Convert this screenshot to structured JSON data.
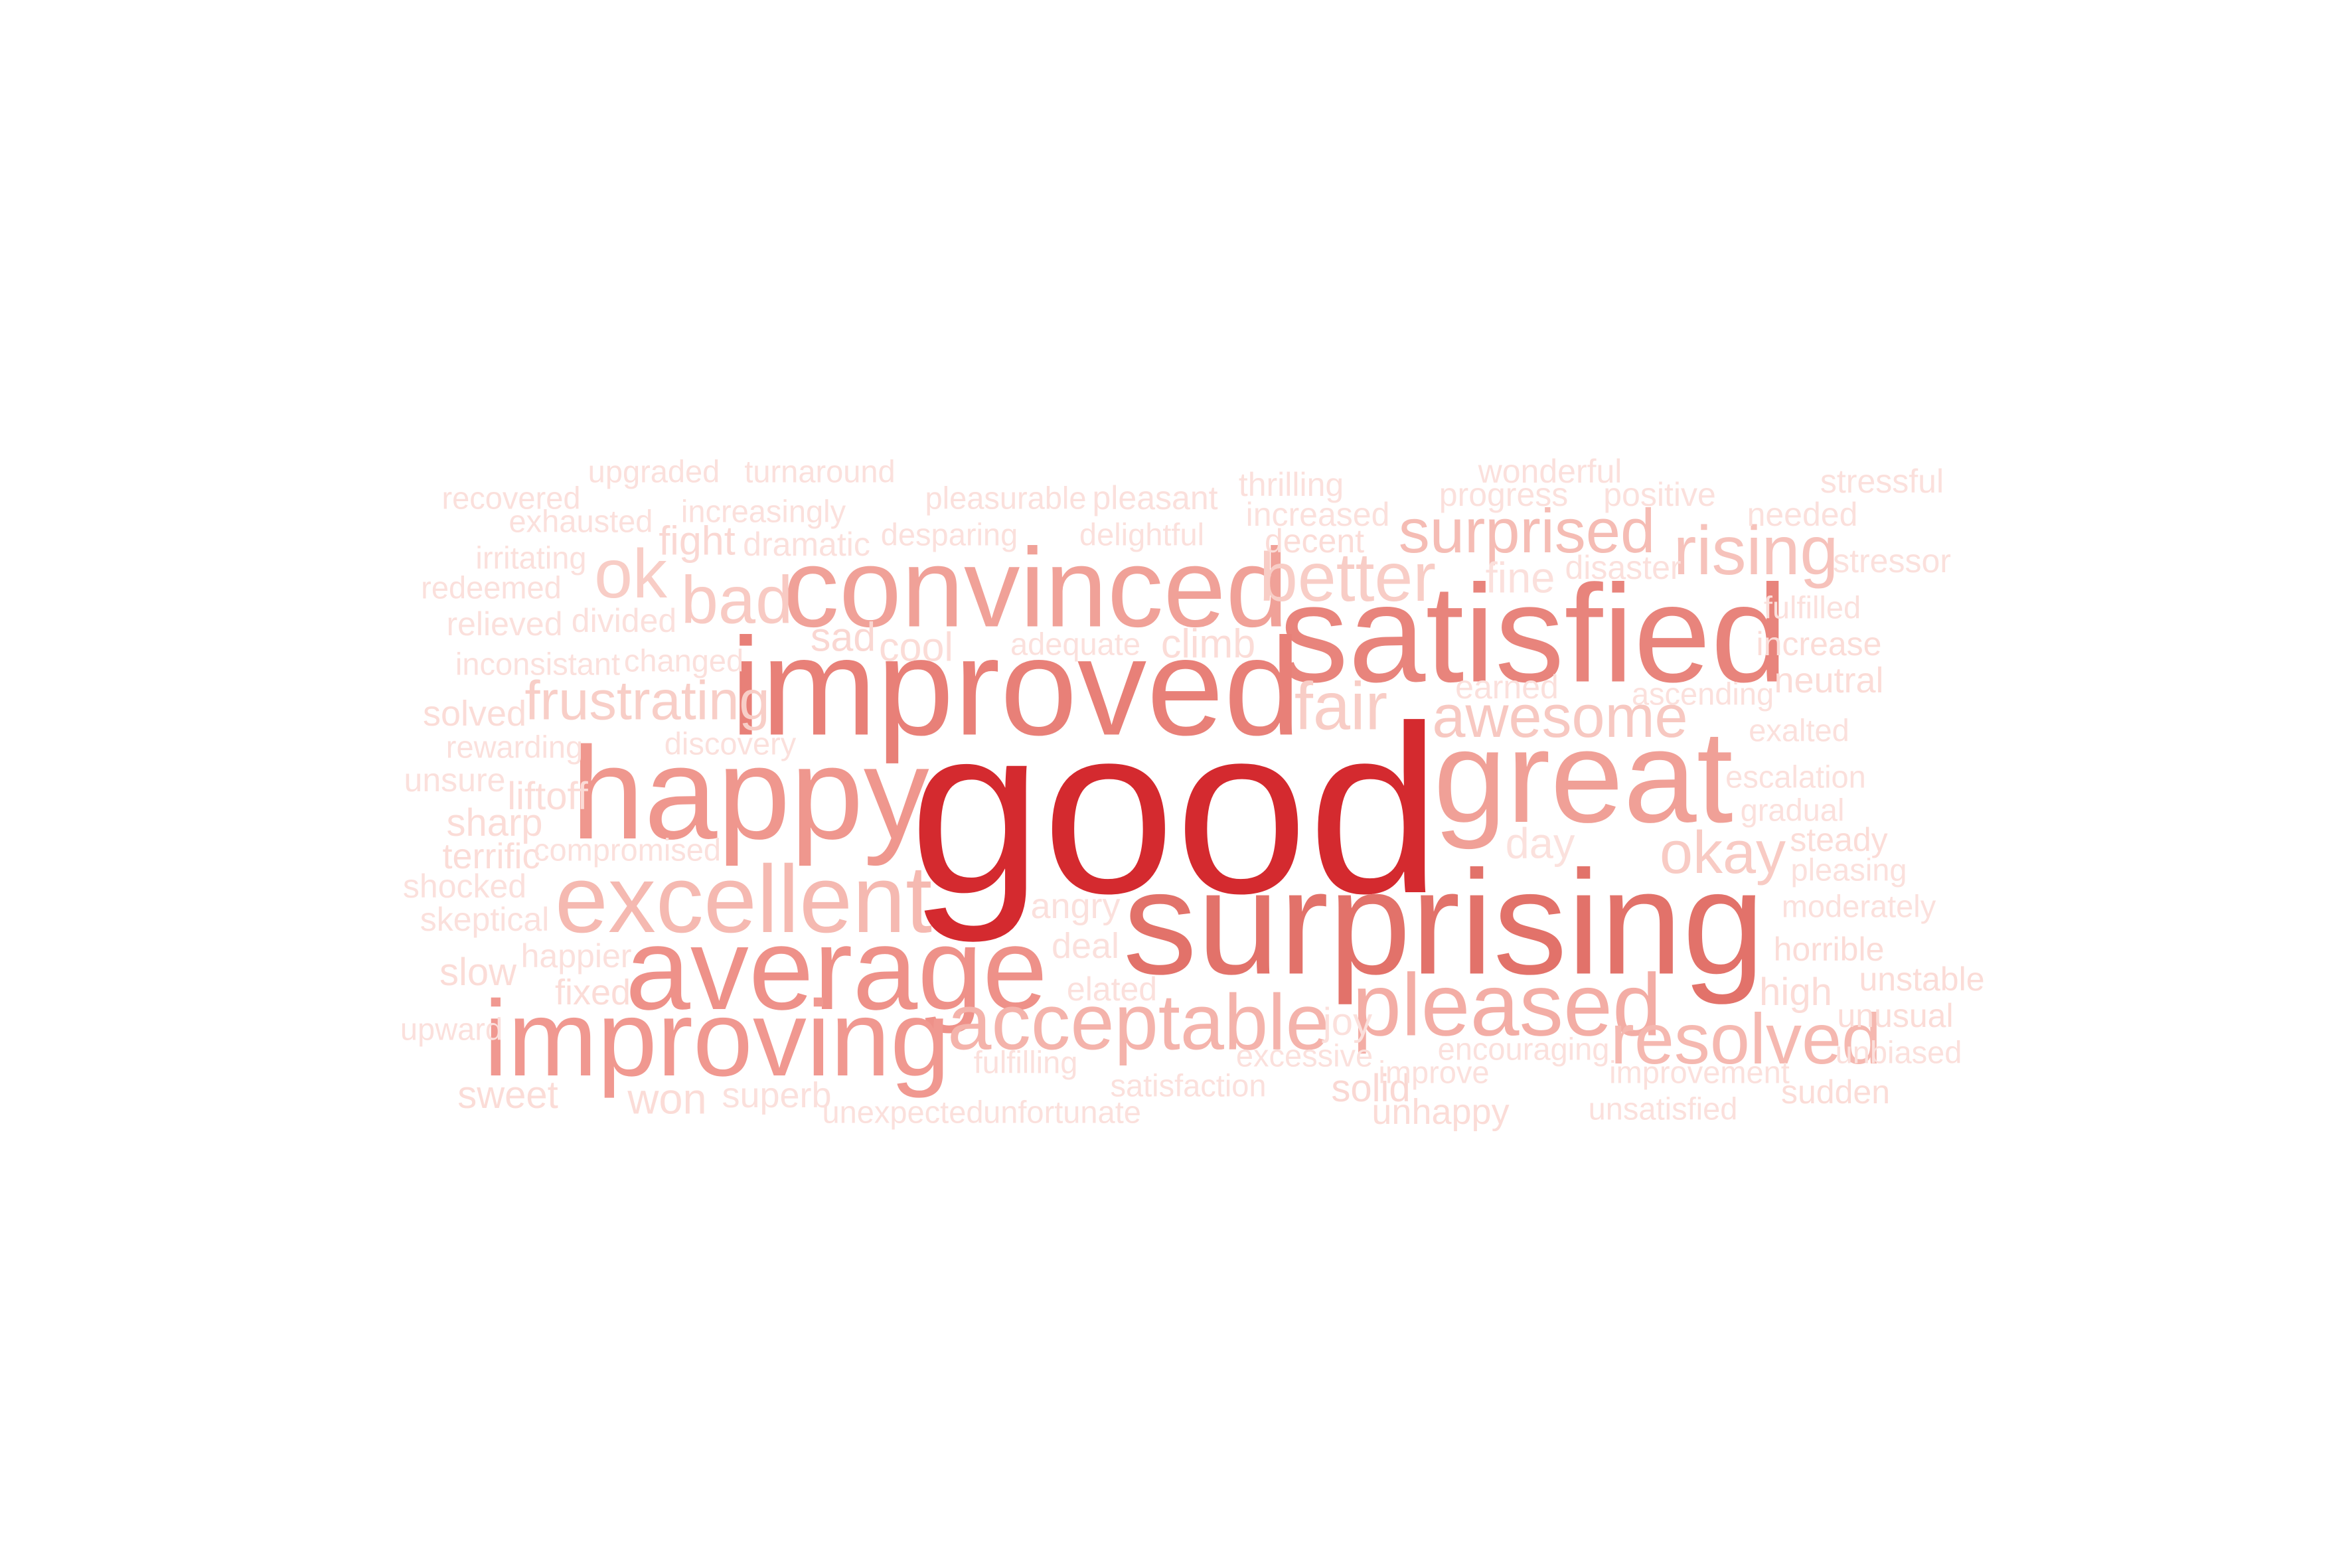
{
  "words": [
    {
      "text": "good",
      "weight": 1.0,
      "color": "#d42a2f"
    },
    {
      "text": "surprising",
      "weight": 0.62,
      "color": "#e2726a"
    },
    {
      "text": "satisfied",
      "weight": 0.58,
      "color": "#e8847c"
    },
    {
      "text": "improved",
      "weight": 0.58,
      "color": "#e88078"
    },
    {
      "text": "great",
      "weight": 0.55,
      "color": "#f0a097"
    },
    {
      "text": "happy",
      "weight": 0.55,
      "color": "#ef978e"
    },
    {
      "text": "average",
      "weight": 0.49,
      "color": "#ee9189"
    },
    {
      "text": "convinced",
      "weight": 0.47,
      "color": "#f0a198"
    },
    {
      "text": "improving",
      "weight": 0.45,
      "color": "#f09890"
    },
    {
      "text": "excellent",
      "weight": 0.4,
      "color": "#f5b9b1"
    },
    {
      "text": "pleased",
      "weight": 0.37,
      "color": "#f3ada5"
    },
    {
      "text": "acceptable",
      "weight": 0.33,
      "color": "#f4b3ab"
    },
    {
      "text": "resolved",
      "weight": 0.3,
      "color": "#f5b8b0"
    },
    {
      "text": "better",
      "weight": 0.29,
      "color": "#f8cdc6"
    },
    {
      "text": "rising",
      "weight": 0.29,
      "color": "#f6c2bb"
    },
    {
      "text": "ok",
      "weight": 0.29,
      "color": "#f8cdc6"
    },
    {
      "text": "bad",
      "weight": 0.28,
      "color": "#f8cac3"
    },
    {
      "text": "fair",
      "weight": 0.28,
      "color": "#f8cdc6"
    },
    {
      "text": "surprised",
      "weight": 0.26,
      "color": "#f5bcb4"
    },
    {
      "text": "awesome",
      "weight": 0.25,
      "color": "#f7c8c1"
    },
    {
      "text": "okay",
      "weight": 0.25,
      "color": "#f8cbc4"
    },
    {
      "text": "frustrating",
      "weight": 0.23,
      "color": "#f8cec7"
    },
    {
      "text": "fine",
      "weight": 0.18,
      "color": "#fbe0dc"
    },
    {
      "text": "day",
      "weight": 0.18,
      "color": "#fbe1dd"
    },
    {
      "text": "won",
      "weight": 0.18,
      "color": "#fbdcd7"
    },
    {
      "text": "fight",
      "weight": 0.17,
      "color": "#fad8d3"
    },
    {
      "text": "sad",
      "weight": 0.17,
      "color": "#fad7d2"
    },
    {
      "text": "cool",
      "weight": 0.17,
      "color": "#fbdcd7"
    },
    {
      "text": "climb",
      "weight": 0.17,
      "color": "#fbdcd7"
    },
    {
      "text": "sharp",
      "weight": 0.16,
      "color": "#fbdcd7"
    },
    {
      "text": "slow",
      "weight": 0.16,
      "color": "#fbdcd7"
    },
    {
      "text": "liftoff",
      "weight": 0.16,
      "color": "#fbdcd7"
    },
    {
      "text": "high",
      "weight": 0.16,
      "color": "#fbdcd7"
    },
    {
      "text": "joy",
      "weight": 0.16,
      "color": "#fbe0dc"
    },
    {
      "text": "solid",
      "weight": 0.16,
      "color": "#fad8d3"
    },
    {
      "text": "sweet",
      "weight": 0.16,
      "color": "#fbdcd7"
    },
    {
      "text": "neutral",
      "weight": 0.15,
      "color": "#fbdcd7"
    },
    {
      "text": "terrific",
      "weight": 0.15,
      "color": "#fbdcd7"
    },
    {
      "text": "solved",
      "weight": 0.15,
      "color": "#fbdcd7"
    },
    {
      "text": "angry",
      "weight": 0.15,
      "color": "#fbe0dc"
    },
    {
      "text": "deal",
      "weight": 0.15,
      "color": "#fbe0dc"
    },
    {
      "text": "fixed",
      "weight": 0.15,
      "color": "#fbdcd7"
    },
    {
      "text": "unhappy",
      "weight": 0.15,
      "color": "#fbdcd7"
    },
    {
      "text": "superb",
      "weight": 0.15,
      "color": "#fbe0dc"
    },
    {
      "text": "sudden",
      "weight": 0.14,
      "color": "#fbdcd7"
    },
    {
      "text": "decent",
      "weight": 0.14,
      "color": "#fbdcd7"
    },
    {
      "text": "increase",
      "weight": 0.14,
      "color": "#fbdcd7"
    },
    {
      "text": "unusual",
      "weight": 0.14,
      "color": "#fbdcd7"
    },
    {
      "text": "unstable",
      "weight": 0.14,
      "color": "#fbdcd7"
    },
    {
      "text": "horrible",
      "weight": 0.14,
      "color": "#fbdcd7"
    },
    {
      "text": "steady",
      "weight": 0.14,
      "color": "#fbdcd7"
    },
    {
      "text": "progress",
      "weight": 0.14,
      "color": "#fbe0dc"
    },
    {
      "text": "positive",
      "weight": 0.14,
      "color": "#fbe0dc"
    },
    {
      "text": "needed",
      "weight": 0.14,
      "color": "#fbe0dc"
    },
    {
      "text": "stressful",
      "weight": 0.14,
      "color": "#fbe0dc"
    },
    {
      "text": "stressor",
      "weight": 0.14,
      "color": "#fbe0dc"
    },
    {
      "text": "thrilling",
      "weight": 0.14,
      "color": "#fbe0dc"
    },
    {
      "text": "increased",
      "weight": 0.14,
      "color": "#fbe0dc"
    },
    {
      "text": "wonderful",
      "weight": 0.14,
      "color": "#fbe0dc"
    },
    {
      "text": "pleasant",
      "weight": 0.14,
      "color": "#fbe0dc"
    },
    {
      "text": "dramatic",
      "weight": 0.14,
      "color": "#fbe0dc"
    },
    {
      "text": "divided",
      "weight": 0.14,
      "color": "#fbe0dc"
    },
    {
      "text": "relieved",
      "weight": 0.14,
      "color": "#fbe0dc"
    },
    {
      "text": "unsure",
      "weight": 0.14,
      "color": "#fbe0dc"
    },
    {
      "text": "shocked",
      "weight": 0.14,
      "color": "#fbe0dc"
    },
    {
      "text": "skeptical",
      "weight": 0.14,
      "color": "#fbe0dc"
    },
    {
      "text": "happier",
      "weight": 0.14,
      "color": "#fbe0dc"
    },
    {
      "text": "elated",
      "weight": 0.14,
      "color": "#fbe0dc"
    },
    {
      "text": "disaster",
      "weight": 0.14,
      "color": "#fbe0dc"
    },
    {
      "text": "earned",
      "weight": 0.14,
      "color": "#fbe0dc"
    },
    {
      "text": "upgraded",
      "weight": 0.13,
      "color": "#fbe0dc"
    },
    {
      "text": "turnaround",
      "weight": 0.13,
      "color": "#fbe0dc"
    },
    {
      "text": "recovered",
      "weight": 0.13,
      "color": "#fbe0dc"
    },
    {
      "text": "exhausted",
      "weight": 0.13,
      "color": "#fbe0dc"
    },
    {
      "text": "increasingly",
      "weight": 0.13,
      "color": "#fbe0dc"
    },
    {
      "text": "irritating",
      "weight": 0.13,
      "color": "#fbe0dc"
    },
    {
      "text": "redeemed",
      "weight": 0.13,
      "color": "#fbe0dc"
    },
    {
      "text": "inconsistant",
      "weight": 0.13,
      "color": "#fbe0dc"
    },
    {
      "text": "changed",
      "weight": 0.13,
      "color": "#fbe0dc"
    },
    {
      "text": "rewarding",
      "weight": 0.13,
      "color": "#fbe0dc"
    },
    {
      "text": "discovery",
      "weight": 0.13,
      "color": "#fbe0dc"
    },
    {
      "text": "compromised",
      "weight": 0.13,
      "color": "#fbe0dc"
    },
    {
      "text": "upward",
      "weight": 0.13,
      "color": "#fbe0dc"
    },
    {
      "text": "pleasurable",
      "weight": 0.13,
      "color": "#fbe0dc"
    },
    {
      "text": "desparing",
      "weight": 0.13,
      "color": "#fbe0dc"
    },
    {
      "text": "delightful",
      "weight": 0.13,
      "color": "#fbe0dc"
    },
    {
      "text": "adequate",
      "weight": 0.13,
      "color": "#fbe0dc"
    },
    {
      "text": "fulfilled",
      "weight": 0.13,
      "color": "#fbe0dc"
    },
    {
      "text": "ascending",
      "weight": 0.13,
      "color": "#fbe0dc"
    },
    {
      "text": "exalted",
      "weight": 0.13,
      "color": "#fbe0dc"
    },
    {
      "text": "escalation",
      "weight": 0.13,
      "color": "#fbe0dc"
    },
    {
      "text": "gradual",
      "weight": 0.13,
      "color": "#fbe0dc"
    },
    {
      "text": "pleasing",
      "weight": 0.13,
      "color": "#fbe0dc"
    },
    {
      "text": "moderately",
      "weight": 0.13,
      "color": "#fbe0dc"
    },
    {
      "text": "unbiased",
      "weight": 0.13,
      "color": "#fbe0dc"
    },
    {
      "text": "improvement",
      "weight": 0.13,
      "color": "#fbe0dc"
    },
    {
      "text": "unsatisfied",
      "weight": 0.13,
      "color": "#fbe0dc"
    },
    {
      "text": "encouraging",
      "weight": 0.13,
      "color": "#fbe0dc"
    },
    {
      "text": "improve",
      "weight": 0.13,
      "color": "#fbe0dc"
    },
    {
      "text": "excessive",
      "weight": 0.13,
      "color": "#fbe0dc"
    },
    {
      "text": "satisfaction",
      "weight": 0.13,
      "color": "#fbe0dc"
    },
    {
      "text": "fulfilling",
      "weight": 0.13,
      "color": "#fbe0dc"
    },
    {
      "text": "unexpected",
      "weight": 0.13,
      "color": "#fbe0dc"
    },
    {
      "text": "unfortunate",
      "weight": 0.13,
      "color": "#fbe0dc"
    }
  ]
}
